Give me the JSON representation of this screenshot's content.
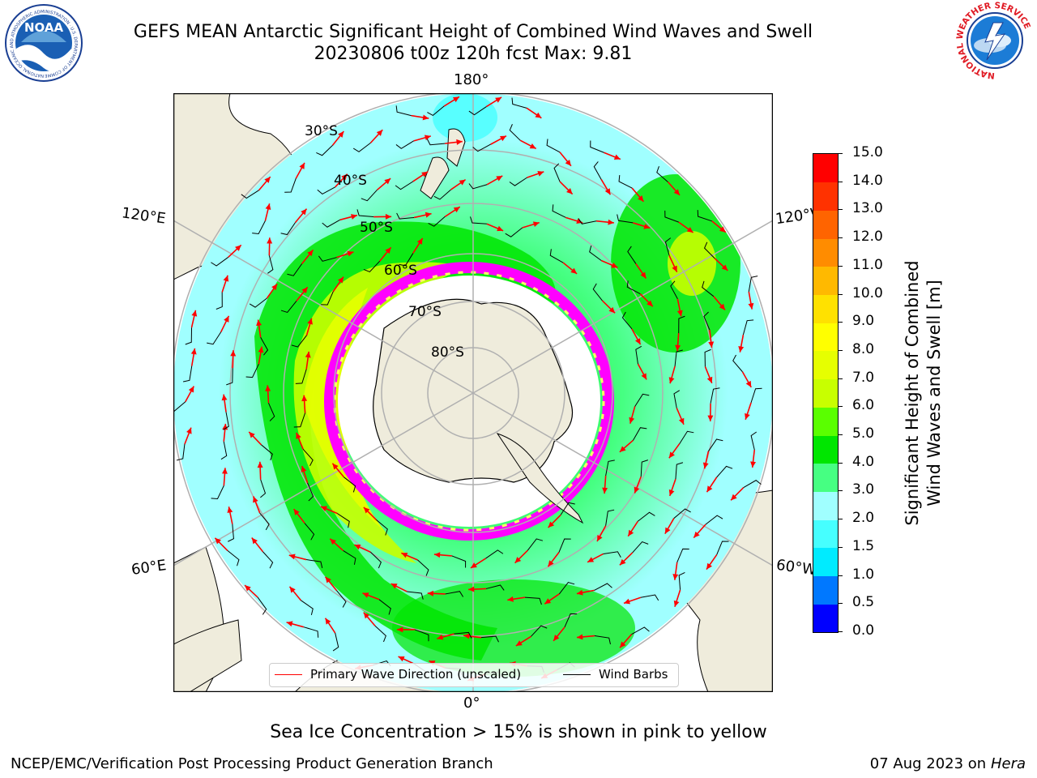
{
  "header": {
    "title_line1": "GEFS MEAN Antarctic Significant Height of Combined Wind Waves and Swell",
    "title_line2": "20230806 t00z 120h fcst   Max: 9.81"
  },
  "logos": {
    "left": {
      "name": "NOAA",
      "text": "NOAA",
      "ring_text": "NATIONAL OCEANIC AND ATMOSPHERIC ADMINISTRATION · U.S. DEPARTMENT OF COMMERCE"
    },
    "right": {
      "name": "National Weather Service",
      "ring_text": "NATIONAL WEATHER SERVICE"
    }
  },
  "map": {
    "projection": "south polar stereographic",
    "longitude_labels": {
      "top": "180°",
      "bottom": "0°",
      "left_upper": "120°E",
      "left_lower": "60°E",
      "right_upper": "120°W",
      "right_lower": "60°W"
    },
    "latitude_labels": [
      "30°S",
      "40°S",
      "50°S",
      "60°S",
      "70°S",
      "80°S"
    ],
    "colors": {
      "land": "#efecdc",
      "ice_shelf": "#ffffff",
      "sea_ice": "#ff00ff",
      "grid": "#b0b0b0",
      "wave_arrow": "#ff0000",
      "wind_barb": "#000000"
    }
  },
  "legend": {
    "items": [
      {
        "label": "Primary Wave Direction (unscaled)",
        "color": "#ff0000"
      },
      {
        "label": "Wind Barbs",
        "color": "#000000"
      }
    ]
  },
  "colorbar": {
    "title_line1": "Significant Height of Combined",
    "title_line2": "Wind Waves and Swell [m]",
    "ticks": [
      "0.0",
      "0.5",
      "1.0",
      "1.5",
      "2.0",
      "3.0",
      "4.0",
      "5.0",
      "6.0",
      "7.0",
      "8.0",
      "9.0",
      "10.0",
      "11.0",
      "12.0",
      "13.0",
      "14.0",
      "15.0"
    ],
    "colors": [
      "#0000ff",
      "#0078ff",
      "#00ebff",
      "#46ffff",
      "#a0ffff",
      "#46ff82",
      "#00e600",
      "#5aff00",
      "#c8ff00",
      "#e6ff00",
      "#ffff00",
      "#ffe100",
      "#ffb900",
      "#ff8c00",
      "#ff6400",
      "#ff3200",
      "#ff0000"
    ]
  },
  "notes": {
    "sea_ice": "Sea Ice Concentration > 15% is shown in pink to yellow"
  },
  "footer": {
    "left": "NCEP/EMC/Verification Post Processing Product Generation Branch",
    "date": "07 Aug 2023 on",
    "host": "Hera"
  }
}
